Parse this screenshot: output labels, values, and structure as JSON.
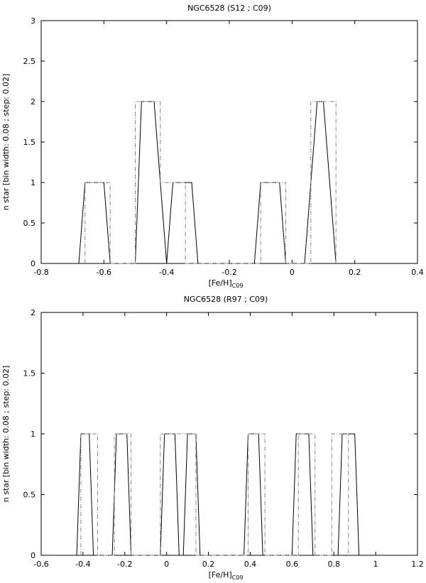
{
  "chart_data": [
    {
      "type": "line",
      "title": "NGC6528 (S12 ; C09)",
      "xlabel": "[Fe/H]",
      "xlabel_sub": "C09",
      "ylabel": "n star [bin width: 0.08 ; step: 0.02]",
      "xlim": [
        -0.8,
        0.4
      ],
      "ylim": [
        0,
        3
      ],
      "xticks": [
        "-0.8",
        "-0.6",
        "-0.4",
        "-0.2",
        "0",
        "0.2",
        "0.4"
      ],
      "yticks": [
        "0",
        "0.5",
        "1",
        "1.5",
        "2",
        "2.5",
        "3"
      ],
      "grid": false,
      "series": [
        {
          "style": "solid",
          "x": [
            -0.68,
            -0.66,
            -0.6,
            -0.58,
            -0.5,
            -0.48,
            -0.44,
            -0.42,
            -0.4,
            -0.38,
            -0.32,
            -0.3,
            -0.12,
            -0.1,
            -0.04,
            -0.02,
            0.04,
            0.08,
            0.1,
            0.14
          ],
          "y": [
            0,
            1,
            1,
            0,
            0,
            2,
            2,
            1,
            0,
            1,
            1,
            0,
            0,
            1,
            1,
            0,
            0,
            2,
            2,
            0
          ]
        },
        {
          "style": "dash-dot",
          "x": [
            -0.66,
            -0.66,
            -0.58,
            -0.58,
            -0.5,
            -0.5,
            -0.42,
            -0.42,
            -0.34,
            -0.34,
            -0.1,
            -0.1,
            -0.02,
            -0.02,
            0.06,
            0.06,
            0.14,
            0.14
          ],
          "y": [
            0,
            1,
            1,
            0,
            0,
            2,
            2,
            1,
            1,
            0,
            0,
            1,
            1,
            0,
            0,
            2,
            2,
            0
          ]
        }
      ]
    },
    {
      "type": "line",
      "title": "NGC6528 (R97 ; C09)",
      "xlabel": "[Fe/H]",
      "xlabel_sub": "C09",
      "ylabel": "n star [bin width: 0.08 ; step: 0.02]",
      "xlim": [
        -0.6,
        1.2
      ],
      "ylim": [
        0,
        2
      ],
      "xticks": [
        "-0.6",
        "-0.4",
        "-0.2",
        "0",
        "0.2",
        "0.4",
        "0.6",
        "0.8",
        "1",
        "1.2"
      ],
      "yticks": [
        "0",
        "0.5",
        "1",
        "1.5",
        "2"
      ],
      "grid": false,
      "series": [
        {
          "style": "solid",
          "x": [
            -0.43,
            -0.41,
            -0.37,
            -0.35,
            -0.26,
            -0.24,
            -0.19,
            -0.17,
            -0.03,
            -0.01,
            0.04,
            0.06,
            0.08,
            0.1,
            0.14,
            0.16,
            0.37,
            0.39,
            0.44,
            0.46,
            0.6,
            0.62,
            0.68,
            0.7,
            0.82,
            0.84,
            0.9,
            0.92
          ],
          "y": [
            0,
            1,
            1,
            0,
            0,
            1,
            1,
            0,
            0,
            1,
            1,
            0,
            0,
            1,
            1,
            0,
            0,
            1,
            1,
            0,
            0,
            1,
            1,
            0,
            0,
            1,
            1,
            0
          ]
        },
        {
          "style": "dash-dot",
          "x": [
            -0.41,
            -0.41,
            -0.33,
            -0.33,
            -0.25,
            -0.25,
            -0.17,
            -0.17,
            -0.03,
            -0.03,
            0.14,
            0.14,
            0.39,
            0.39,
            0.47,
            0.47,
            0.63,
            0.63,
            0.71,
            0.71,
            0.79,
            0.79,
            0.87,
            0.87
          ],
          "y": [
            0,
            1,
            1,
            0,
            0,
            1,
            1,
            0,
            0,
            1,
            1,
            0,
            0,
            1,
            1,
            0,
            0,
            1,
            1,
            0,
            0,
            1,
            1,
            0
          ]
        }
      ]
    }
  ]
}
